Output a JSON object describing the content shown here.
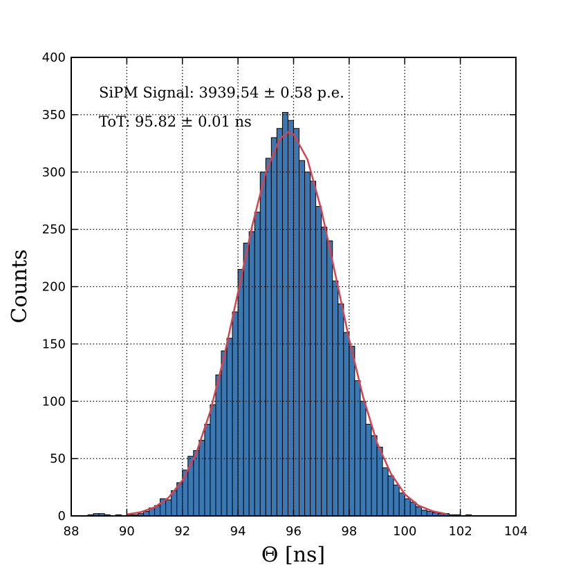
{
  "chart_data": {
    "type": "histogram",
    "xlabel": "Θ [ns]",
    "ylabel": "Counts",
    "annotations": [
      "SiPM Signal: 3939.54 ± 0.58 p.e.",
      "ToT: 95.82 ± 0.01 ns"
    ],
    "bins": [
      88.6,
      88.8,
      89.0,
      89.2,
      89.4,
      89.6,
      89.8,
      90.0,
      90.2,
      90.4,
      90.6,
      90.8,
      91.0,
      91.2,
      91.4,
      91.6,
      91.8,
      92.0,
      92.2,
      92.4,
      92.6,
      92.8,
      93.0,
      93.2,
      93.4,
      93.6,
      93.8,
      94.0,
      94.2,
      94.4,
      94.6,
      94.8,
      95.0,
      95.2,
      95.4,
      95.6,
      95.8,
      96.0,
      96.2,
      96.4,
      96.6,
      96.8,
      97.0,
      97.2,
      97.4,
      97.6,
      97.8,
      98.0,
      98.2,
      98.4,
      98.6,
      98.8,
      99.0,
      99.2,
      99.4,
      99.6,
      99.8,
      100.0,
      100.2,
      100.4,
      100.6,
      100.8,
      101.0,
      101.2,
      101.4,
      101.6,
      101.8,
      102.0,
      102.2,
      102.4
    ],
    "values": [
      1,
      2,
      2,
      1,
      0,
      1,
      0,
      1,
      1,
      2,
      4,
      7,
      9,
      15,
      14,
      22,
      29,
      40,
      52,
      57,
      66,
      80,
      97,
      123,
      144,
      155,
      178,
      215,
      238,
      248,
      265,
      300,
      312,
      330,
      338,
      352,
      345,
      338,
      310,
      300,
      292,
      270,
      252,
      240,
      205,
      185,
      160,
      148,
      118,
      100,
      80,
      70,
      60,
      42,
      35,
      27,
      20,
      15,
      12,
      8,
      5,
      4,
      3,
      2,
      2,
      1,
      1,
      0,
      1
    ],
    "color": "#3a78b4",
    "fit": {
      "color": "#d9414f",
      "x": [
        90,
        90.5,
        91,
        91.5,
        92,
        92.5,
        93,
        93.5,
        94,
        94.5,
        95,
        95.5,
        95.82,
        96,
        96.5,
        97,
        97.5,
        98,
        98.5,
        99,
        99.5,
        100,
        100.5,
        101,
        101.5
      ],
      "values": [
        1.3,
        3.3,
        7.6,
        15.9,
        31,
        55,
        91,
        139,
        195,
        252,
        300,
        329,
        335,
        333,
        311,
        267,
        211,
        154,
        104,
        64,
        37,
        19,
        9,
        4.2,
        1.7
      ]
    },
    "xlim": [
      88,
      104
    ],
    "xticks": [
      88,
      90,
      92,
      94,
      96,
      98,
      100,
      102,
      104
    ],
    "ylim": [
      0,
      400
    ],
    "yticks": [
      0,
      50,
      100,
      150,
      200,
      250,
      300,
      350,
      400
    ],
    "grid": true
  }
}
